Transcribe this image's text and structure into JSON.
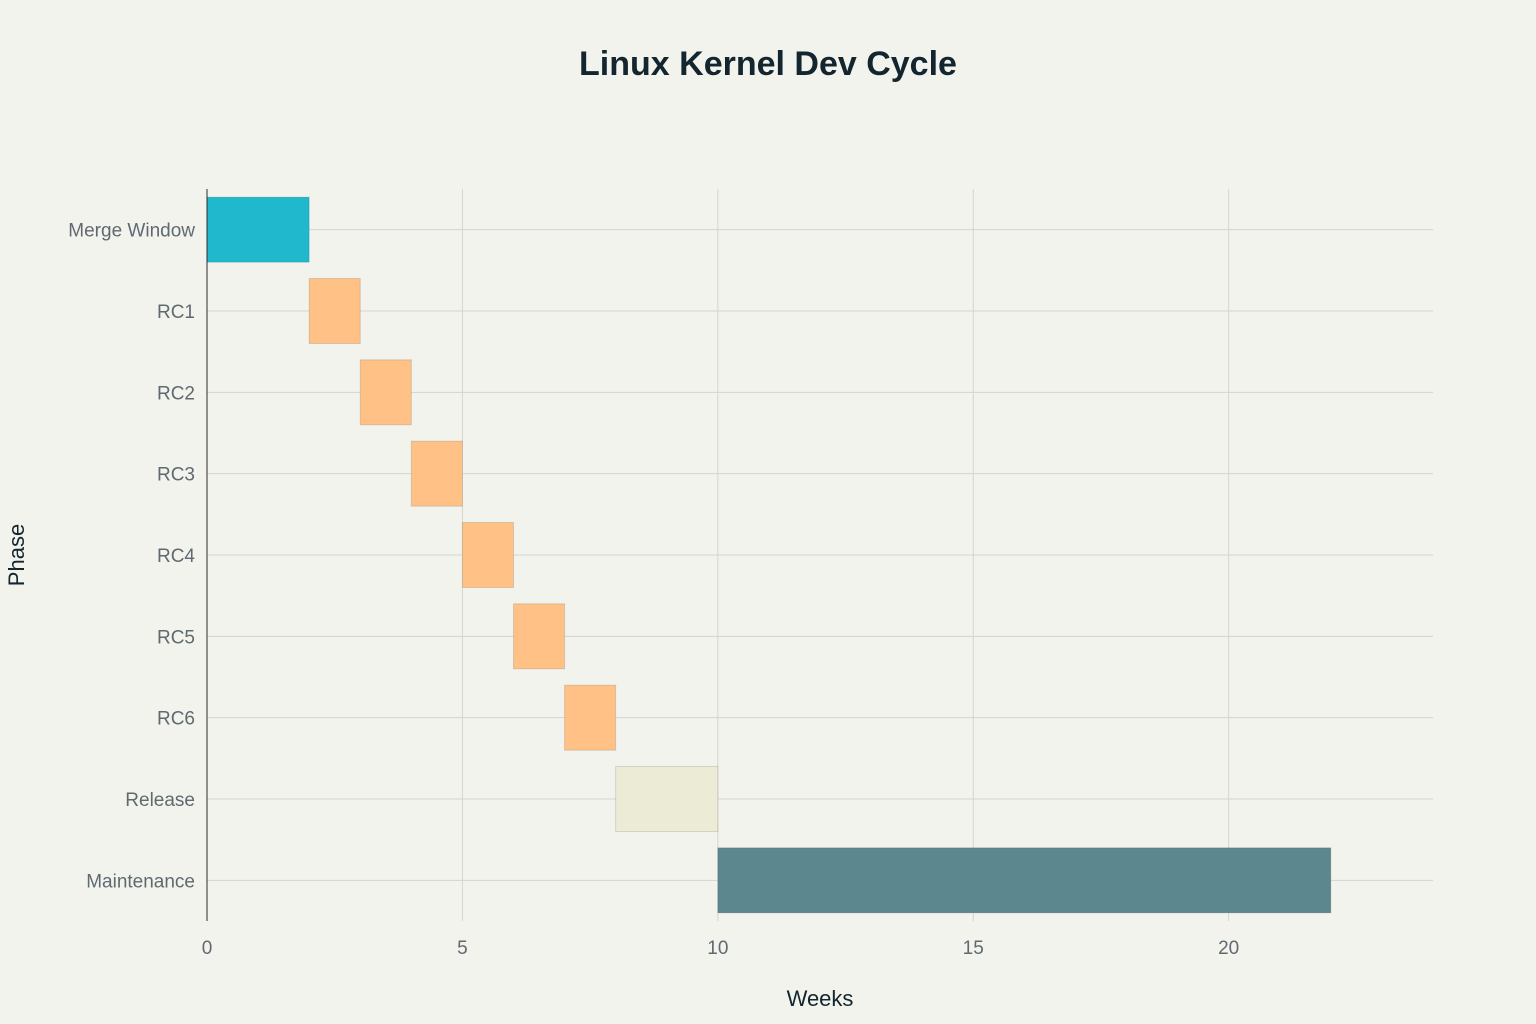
{
  "chart_data": {
    "type": "bar",
    "orientation": "horizontal",
    "subtype": "gantt",
    "title": "Linux Kernel Dev Cycle",
    "xlabel": "Weeks",
    "ylabel": "Phase",
    "xlim": [
      0,
      24
    ],
    "xticks": [
      0,
      5,
      10,
      15,
      20
    ],
    "grid": true,
    "legend": false,
    "categories": [
      "Merge Window",
      "RC1",
      "RC2",
      "RC3",
      "RC4",
      "RC5",
      "RC6",
      "Release",
      "Maintenance"
    ],
    "tasks": [
      {
        "phase": "Merge Window",
        "start": 0,
        "end": 2,
        "color": "#1fb8cd"
      },
      {
        "phase": "RC1",
        "start": 2,
        "end": 3,
        "color": "#ffc185"
      },
      {
        "phase": "RC2",
        "start": 3,
        "end": 4,
        "color": "#ffc185"
      },
      {
        "phase": "RC3",
        "start": 4,
        "end": 5,
        "color": "#ffc185"
      },
      {
        "phase": "RC4",
        "start": 5,
        "end": 6,
        "color": "#ffc185"
      },
      {
        "phase": "RC5",
        "start": 6,
        "end": 7,
        "color": "#ffc185"
      },
      {
        "phase": "RC6",
        "start": 7,
        "end": 8,
        "color": "#ffc185"
      },
      {
        "phase": "Release",
        "start": 8,
        "end": 10,
        "color": "#ecebd5"
      },
      {
        "phase": "Maintenance",
        "start": 10,
        "end": 22,
        "color": "#5d878f"
      }
    ]
  }
}
